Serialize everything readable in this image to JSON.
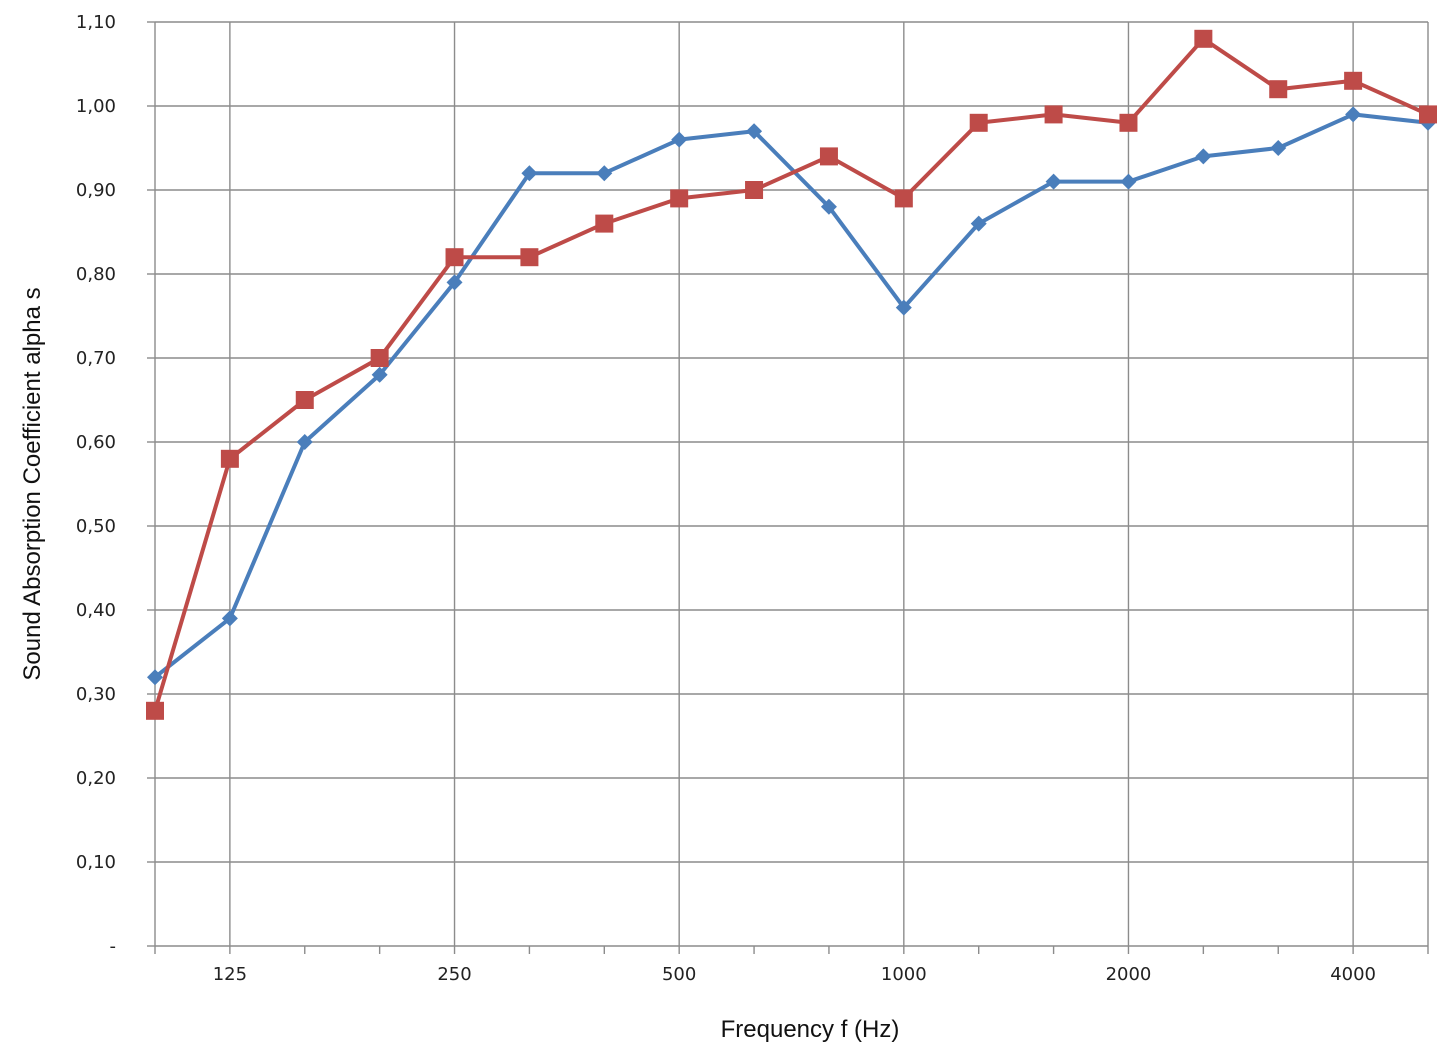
{
  "chart_data": {
    "type": "line",
    "title": "",
    "xlabel": "Frequency f (Hz)",
    "ylabel": "Sound Absorption Coefficient alpha s",
    "x_points": [
      100,
      125,
      160,
      200,
      250,
      315,
      400,
      500,
      630,
      800,
      1000,
      1250,
      1600,
      2000,
      2500,
      3150,
      4000,
      5000
    ],
    "x_tick_labels": [
      {
        "at": 125,
        "label": "125"
      },
      {
        "at": 250,
        "label": "250"
      },
      {
        "at": 500,
        "label": "500"
      },
      {
        "at": 1000,
        "label": "1000"
      },
      {
        "at": 2000,
        "label": "2000"
      },
      {
        "at": 4000,
        "label": "4000"
      }
    ],
    "y_ticks": [
      {
        "value": 0.0,
        "label": "-"
      },
      {
        "value": 0.1,
        "label": "0,10"
      },
      {
        "value": 0.2,
        "label": "0,20"
      },
      {
        "value": 0.3,
        "label": "0,30"
      },
      {
        "value": 0.4,
        "label": "0,40"
      },
      {
        "value": 0.5,
        "label": "0,50"
      },
      {
        "value": 0.6,
        "label": "0,60"
      },
      {
        "value": 0.7,
        "label": "0,70"
      },
      {
        "value": 0.8,
        "label": "0,80"
      },
      {
        "value": 0.9,
        "label": "0,90"
      },
      {
        "value": 1.0,
        "label": "1,00"
      },
      {
        "value": 1.1,
        "label": "1,10"
      }
    ],
    "ylim": [
      0,
      1.1
    ],
    "grid": true,
    "series": [
      {
        "marker": "diamond",
        "color": "#4a7ebb",
        "values": [
          0.32,
          0.39,
          0.6,
          0.68,
          0.79,
          0.92,
          0.92,
          0.96,
          0.97,
          0.88,
          0.76,
          0.86,
          0.91,
          0.91,
          0.94,
          0.95,
          0.99,
          0.98
        ]
      },
      {
        "marker": "square",
        "color": "#be4b48",
        "values": [
          0.28,
          0.58,
          0.65,
          0.7,
          0.82,
          0.82,
          0.86,
          0.89,
          0.9,
          0.94,
          0.89,
          0.98,
          0.99,
          0.98,
          1.08,
          1.02,
          1.03,
          0.99
        ]
      }
    ]
  }
}
